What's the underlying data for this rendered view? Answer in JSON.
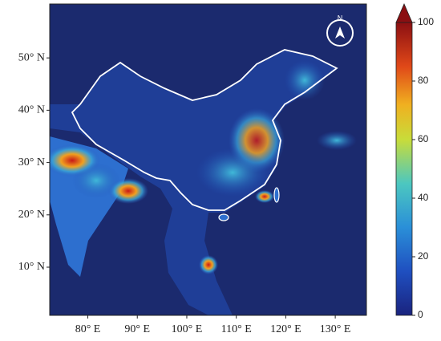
{
  "map": {
    "xlim": [
      72.3,
      136.3
    ],
    "ylim": [
      0.8,
      60.3
    ],
    "xticks": [
      {
        "value": 80,
        "label": "80° E"
      },
      {
        "value": 90,
        "label": "90° E"
      },
      {
        "value": 100,
        "label": "100° E"
      },
      {
        "value": 110,
        "label": "110° E"
      },
      {
        "value": 120,
        "label": "120° E"
      },
      {
        "value": 130,
        "label": "130° E"
      }
    ],
    "yticks": [
      {
        "value": 10,
        "label": "10° N"
      },
      {
        "value": 20,
        "label": "20° N"
      },
      {
        "value": 30,
        "label": "30° N"
      },
      {
        "value": 40,
        "label": "40° N"
      },
      {
        "value": 50,
        "label": "50° N"
      }
    ],
    "colorbar": {
      "lim": [
        0,
        100
      ],
      "ticks": [
        0,
        20,
        40,
        60,
        80,
        100
      ]
    },
    "north_label": "N"
  }
}
